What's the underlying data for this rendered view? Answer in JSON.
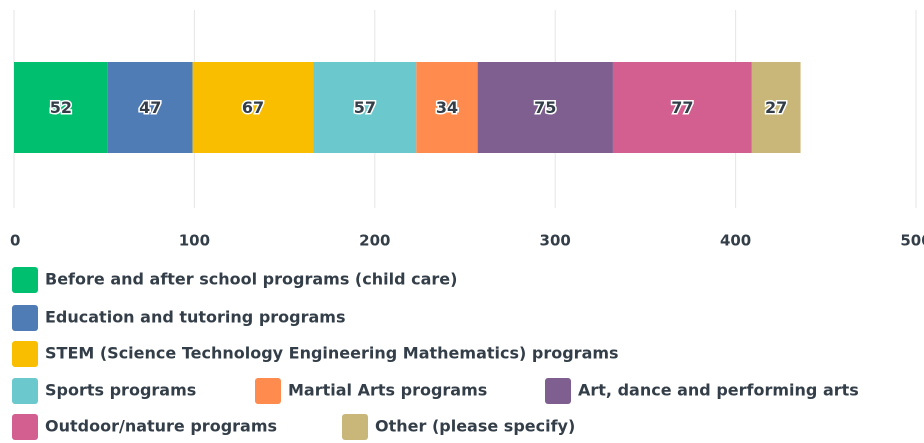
{
  "chart_data": {
    "type": "stacked-bar",
    "orientation": "horizontal",
    "categories": [
      null
    ],
    "series": [
      {
        "name": "Before and after school programs (child care)",
        "color": "#00bf6f",
        "values": [
          52
        ]
      },
      {
        "name": "Education and tutoring programs",
        "color": "#507cb6",
        "values": [
          47
        ]
      },
      {
        "name": "STEM (Science Technology Engineering Mathematics)  programs",
        "color": "#f9be00",
        "values": [
          67
        ]
      },
      {
        "name": "Sports programs",
        "color": "#6bc8cd",
        "values": [
          57
        ]
      },
      {
        "name": "Martial Arts programs",
        "color": "#ff8b4f",
        "values": [
          34
        ]
      },
      {
        "name": "Art, dance and performing arts",
        "color": "#7f5f90",
        "values": [
          75
        ]
      },
      {
        "name": "Outdoor/nature programs",
        "color": "#d25f90",
        "values": [
          77
        ]
      },
      {
        "name": "Other (please specify)",
        "color": "#c9b77a",
        "values": [
          27
        ]
      }
    ],
    "xlim": [
      0,
      500
    ],
    "xticks": [
      0,
      100,
      200,
      300,
      400,
      500
    ],
    "grid": true
  }
}
